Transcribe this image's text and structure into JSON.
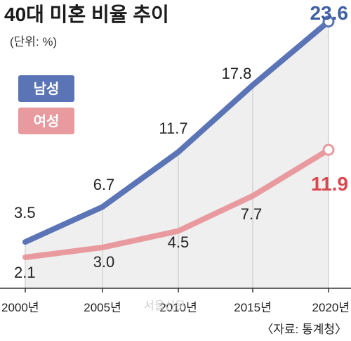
{
  "colors": {
    "male": "#5a74b6",
    "female": "#e89a9f",
    "area": "#efefef",
    "male_text": "#3f5ea4",
    "female_text": "#d9474f"
  },
  "watermark": "서울신문",
  "chart_data": {
    "type": "line",
    "title": "40대 미혼 비율 추이",
    "unit": "(단위: %)",
    "x": [
      "2000년",
      "2005년",
      "2010년",
      "2015년",
      "2020년"
    ],
    "series": [
      {
        "name": "남성",
        "values": [
          3.5,
          6.7,
          11.7,
          17.8,
          23.6
        ],
        "labels": [
          "3.5",
          "6.7",
          "11.7",
          "17.8",
          "23.6"
        ]
      },
      {
        "name": "여성",
        "values": [
          2.1,
          3.0,
          4.5,
          7.7,
          11.9
        ],
        "labels": [
          "2.1",
          "3.0",
          "4.5",
          "7.7",
          "11.9"
        ]
      }
    ],
    "source": "〈자료: 통계청〉",
    "legend_position": "left"
  }
}
